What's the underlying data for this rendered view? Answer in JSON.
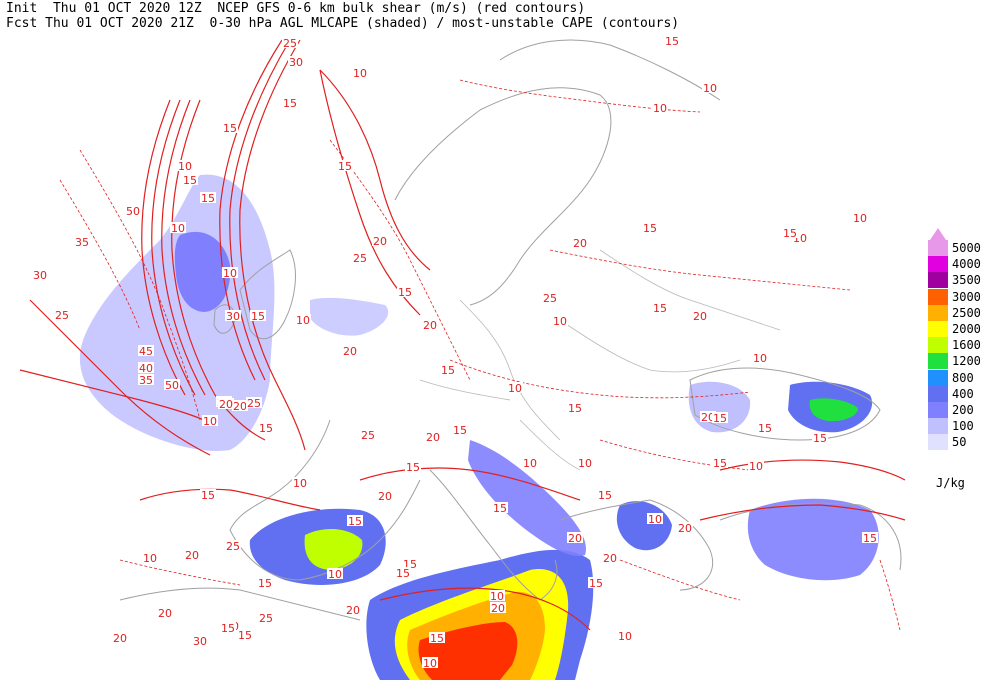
{
  "header": {
    "line1": "Init  Thu 01 OCT 2020 12Z  NCEP GFS 0-6 km bulk shear (m/s) (red contours)",
    "line2": "Fcst Thu 01 OCT 2020 21Z  0-30 hPa AGL MLCAPE (shaded) / most-unstable CAPE (contours)"
  },
  "legend": {
    "units": "J/kg",
    "items": [
      {
        "label": "5000",
        "color": "#e898e8"
      },
      {
        "label": "4000",
        "color": "#e000e0"
      },
      {
        "label": "3500",
        "color": "#a000a0"
      },
      {
        "label": "3000",
        "color": "#ff6000"
      },
      {
        "label": "2500",
        "color": "#ffb000"
      },
      {
        "label": "2000",
        "color": "#ffff00"
      },
      {
        "label": "1600",
        "color": "#c0ff00"
      },
      {
        "label": "1200",
        "color": "#20e040"
      },
      {
        "label": "800",
        "color": "#2090ff"
      },
      {
        "label": "400",
        "color": "#6070f0"
      },
      {
        "label": "200",
        "color": "#8080ff"
      },
      {
        "label": "100",
        "color": "#c0c0ff"
      },
      {
        "label": "50",
        "color": "#e0e0ff"
      }
    ]
  },
  "shear_labels": [
    "25",
    "30",
    "15",
    "10",
    "15",
    "10",
    "15",
    "50",
    "35",
    "30",
    "25",
    "45",
    "40",
    "35",
    "50",
    "20",
    "10",
    "15",
    "20",
    "25",
    "20",
    "30",
    "15",
    "10",
    "20",
    "25",
    "15",
    "20",
    "15",
    "10",
    "15",
    "10",
    "15",
    "20",
    "15",
    "10",
    "15",
    "10",
    "20",
    "15",
    "20",
    "25",
    "20",
    "10",
    "15",
    "20",
    "10",
    "15",
    "10",
    "15",
    "10",
    "20",
    "15",
    "10",
    "15",
    "15",
    "20",
    "15",
    "10",
    "20",
    "10",
    "15",
    "20",
    "10",
    "15",
    "20",
    "25",
    "15",
    "15",
    "15",
    "20",
    "10",
    "15",
    "10",
    "15",
    "25",
    "20",
    "15",
    "20",
    "30",
    "25",
    "10",
    "15",
    "20",
    "15",
    "10",
    "15",
    "10",
    "10",
    "15",
    "10",
    "15",
    "10"
  ],
  "colors": {
    "shear": "#e02020",
    "coast": "#a0a0a0"
  }
}
